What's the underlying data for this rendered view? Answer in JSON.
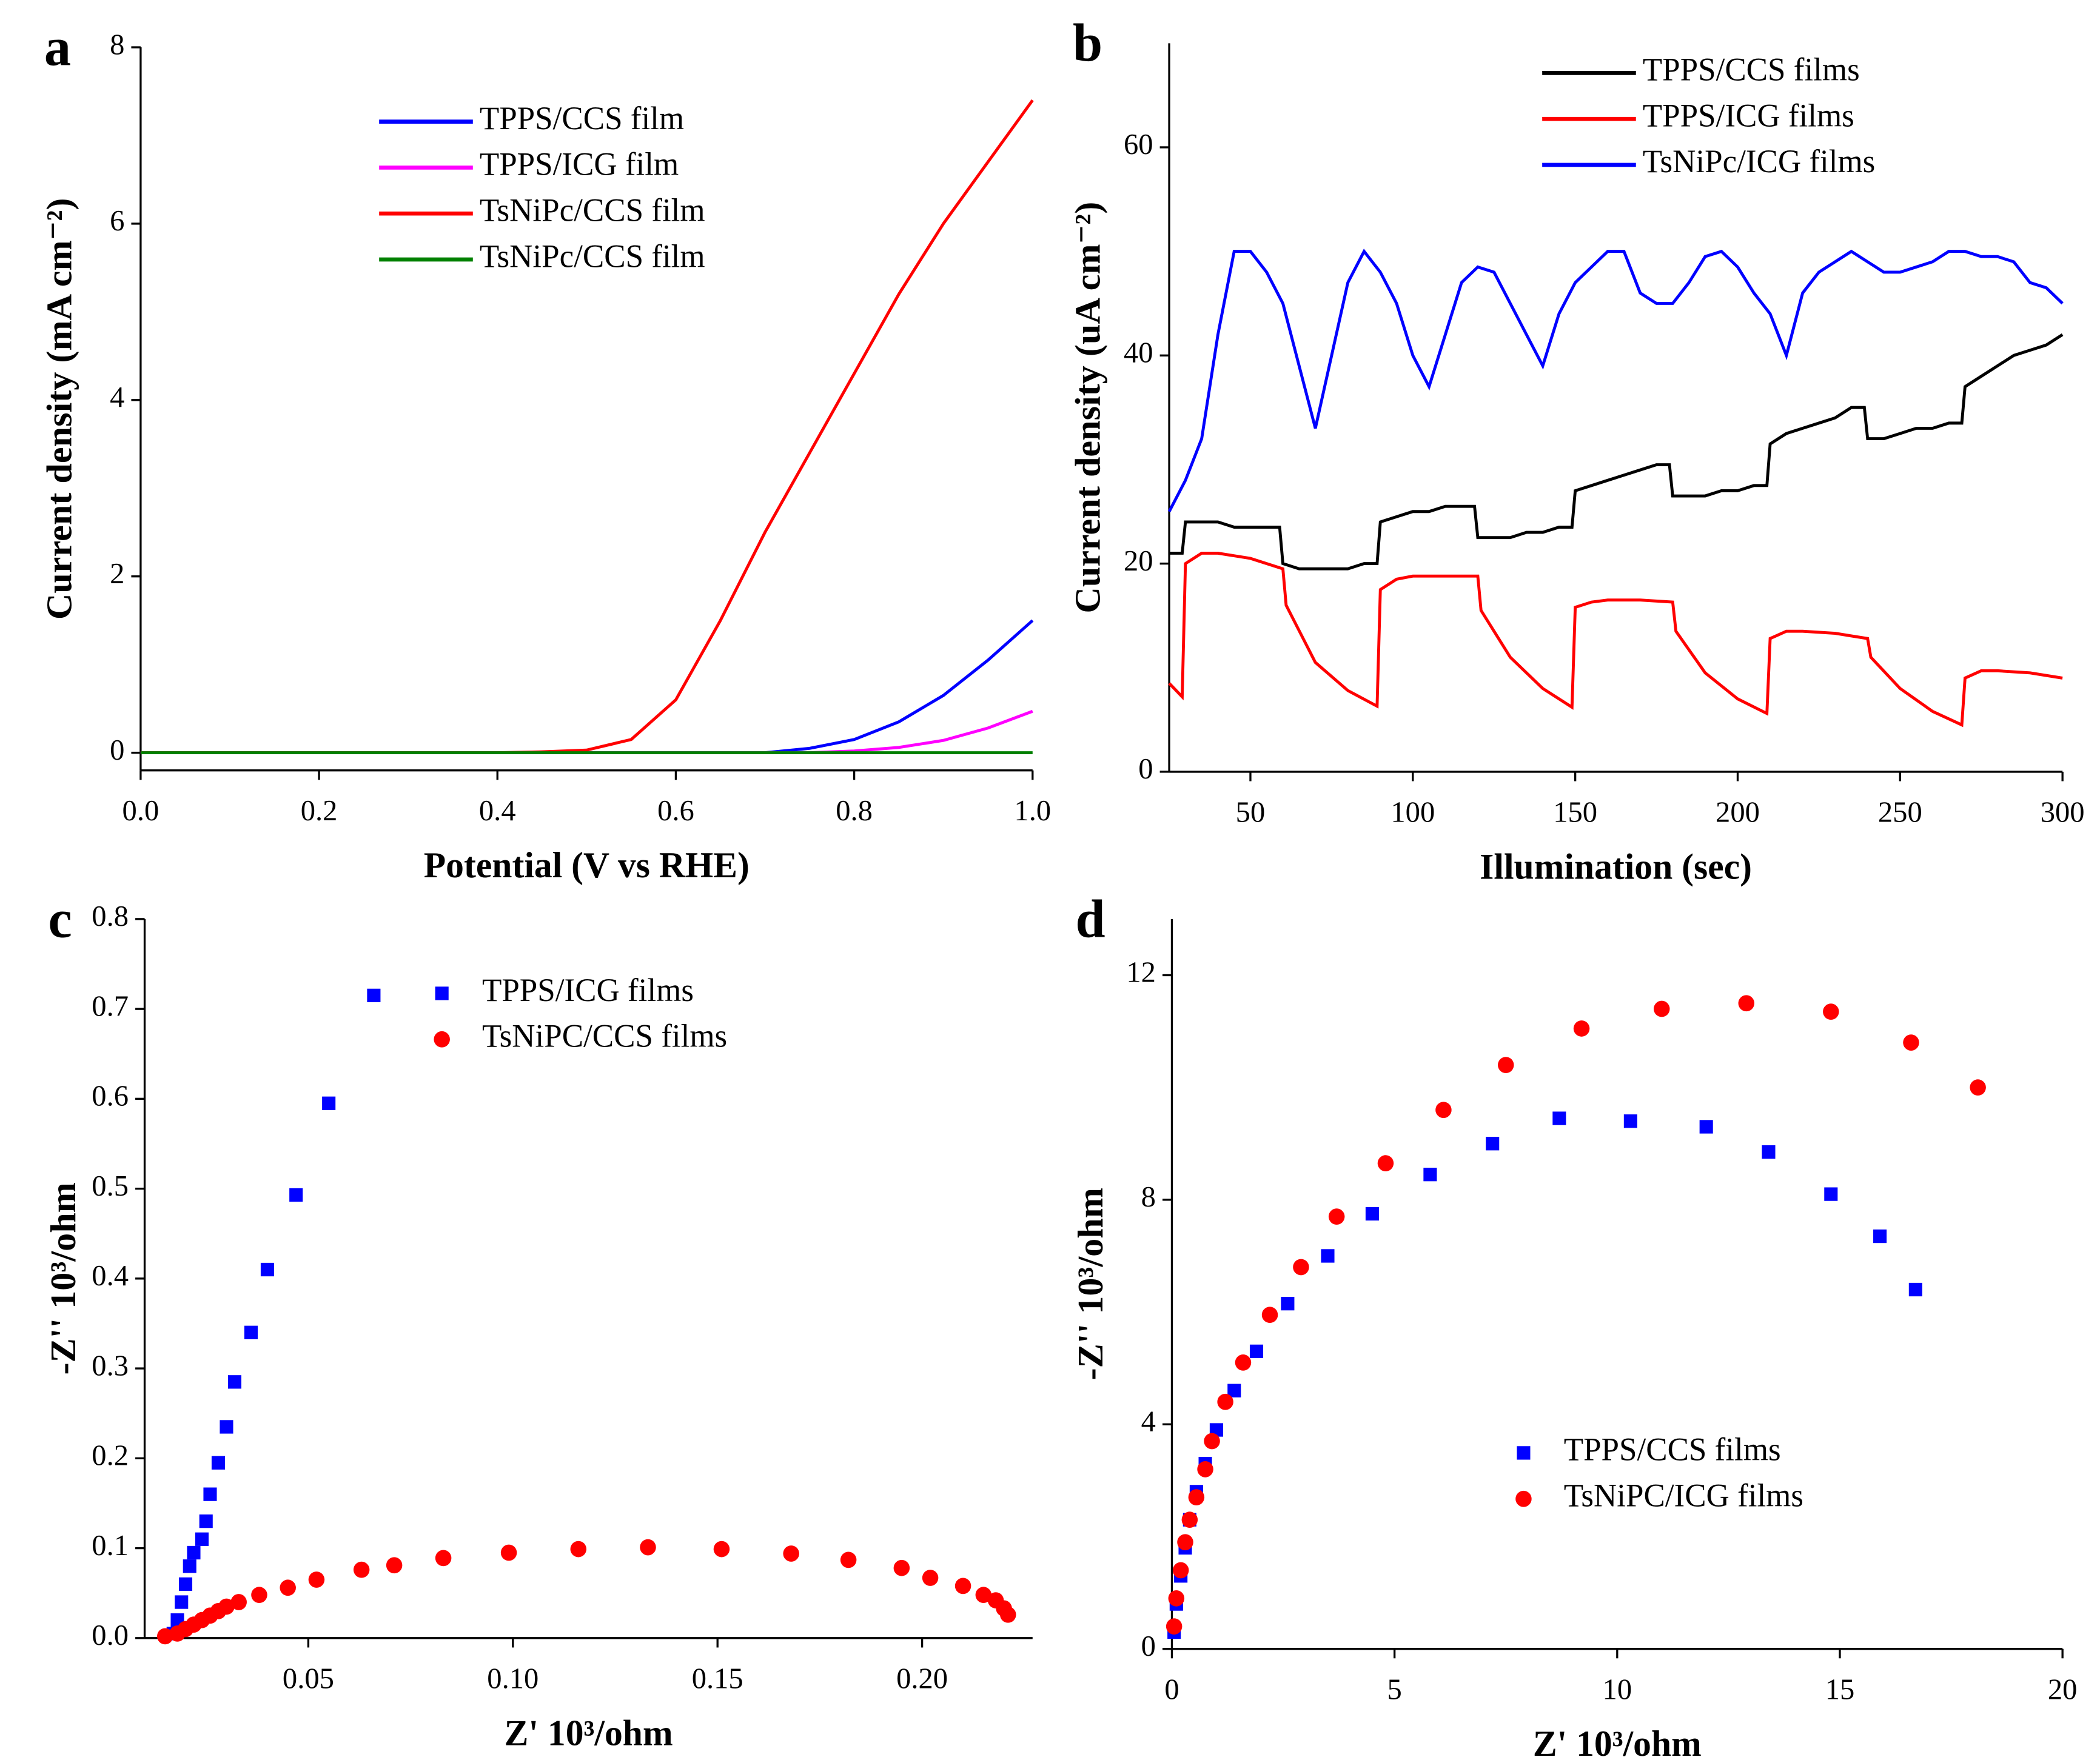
{
  "chart_data": [
    {
      "type": "line",
      "label": "a",
      "x_label": "Potential (V vs RHE)",
      "y_label": "Current density (mA cm⁻²)",
      "x": [
        0,
        0.05,
        0.1,
        0.15,
        0.2,
        0.25,
        0.3,
        0.35,
        0.4,
        0.45,
        0.5,
        0.55,
        0.6,
        0.65,
        0.7,
        0.75,
        0.8,
        0.85,
        0.9,
        0.95,
        1.0
      ],
      "series": [
        {
          "name": "TPPS/CCS film",
          "color": "#0000ff",
          "values": [
            0,
            0,
            0,
            0,
            0,
            0,
            0,
            0,
            0,
            0,
            0,
            0,
            0,
            0,
            0,
            0.05,
            0.15,
            0.35,
            0.65,
            1.05,
            1.5
          ]
        },
        {
          "name": "TPPS/ICG film",
          "color": "#ff00ff",
          "values": [
            0,
            0,
            0,
            0,
            0,
            0,
            0,
            0,
            0,
            0,
            0,
            0,
            0,
            0,
            0,
            0,
            0.02,
            0.06,
            0.14,
            0.28,
            0.47
          ]
        },
        {
          "name": "TsNiPc/CCS film",
          "color": "#ff0000",
          "values": [
            0,
            0,
            0,
            0,
            0,
            0,
            0,
            0,
            0,
            0.01,
            0.03,
            0.15,
            0.6,
            1.5,
            2.5,
            3.4,
            4.3,
            5.2,
            6.0,
            6.7,
            7.4
          ]
        },
        {
          "name": "TsNiPc/CCS film",
          "color": "#008000",
          "values": [
            0,
            0,
            0,
            0,
            0,
            0,
            0,
            0,
            0,
            0,
            0,
            0,
            0,
            0,
            0,
            0,
            0,
            0,
            0,
            0,
            0
          ]
        }
      ],
      "xlim": [
        0,
        1.0
      ],
      "ylim": [
        -0.2,
        8
      ],
      "xticks": [
        {
          "value": 0,
          "label": "0.0"
        },
        {
          "value": 0.2,
          "label": "0.2"
        },
        {
          "value": 0.4,
          "label": "0.4"
        },
        {
          "value": 0.6,
          "label": "0.6"
        },
        {
          "value": 0.8,
          "label": "0.8"
        },
        {
          "value": 1.0,
          "label": "1.0"
        }
      ],
      "yticks": [
        0,
        2,
        4,
        6,
        8
      ],
      "legend": "upper center"
    },
    {
      "type": "line",
      "label": "b",
      "x_label": "Illumination (sec)",
      "y_label": "Current density (uA cm⁻²)",
      "series": [
        {
          "name": "TPPS/CCS films",
          "color": "#000000",
          "x": [
            25,
            29,
            30,
            35,
            40,
            45,
            50,
            55,
            59,
            60,
            65,
            70,
            75,
            80,
            85,
            89,
            90,
            95,
            100,
            105,
            110,
            115,
            119,
            120,
            125,
            130,
            135,
            140,
            145,
            149,
            150,
            155,
            160,
            165,
            170,
            175,
            179,
            180,
            185,
            190,
            195,
            200,
            205,
            209,
            210,
            215,
            220,
            225,
            230,
            235,
            239,
            240,
            245,
            250,
            255,
            260,
            265,
            269,
            270,
            275,
            280,
            285,
            290,
            295,
            300
          ],
          "values": [
            21,
            21,
            24,
            24,
            24,
            23.5,
            23.5,
            23.5,
            23.5,
            20,
            19.5,
            19.5,
            19.5,
            19.5,
            20,
            20,
            24,
            24.5,
            25,
            25,
            25.5,
            25.5,
            25.5,
            22.5,
            22.5,
            22.5,
            23,
            23,
            23.5,
            23.5,
            27,
            27.5,
            28,
            28.5,
            29,
            29.5,
            29.5,
            26.5,
            26.5,
            26.5,
            27,
            27,
            27.5,
            27.5,
            31.5,
            32.5,
            33,
            33.5,
            34,
            35,
            35,
            32,
            32,
            32.5,
            33,
            33,
            33.5,
            33.5,
            37,
            38,
            39,
            40,
            40.5,
            41,
            42
          ]
        },
        {
          "name": "TPPS/ICG films",
          "color": "#ff0000",
          "x": [
            25,
            29,
            30,
            35,
            40,
            50,
            60,
            61,
            70,
            80,
            89,
            90,
            95,
            100,
            110,
            120,
            121,
            130,
            140,
            149,
            150,
            155,
            160,
            170,
            180,
            181,
            190,
            200,
            209,
            210,
            215,
            220,
            230,
            240,
            241,
            250,
            260,
            269,
            270,
            275,
            280,
            290,
            300
          ],
          "values": [
            8.5,
            7.2,
            20,
            21,
            21,
            20.5,
            19.5,
            16,
            10.5,
            7.8,
            6.3,
            17.5,
            18.5,
            18.8,
            18.8,
            18.8,
            15.5,
            11,
            8,
            6.2,
            15.8,
            16.3,
            16.5,
            16.5,
            16.3,
            13.5,
            9.5,
            7,
            5.6,
            12.8,
            13.5,
            13.5,
            13.3,
            12.8,
            11,
            8,
            5.8,
            4.5,
            9,
            9.7,
            9.7,
            9.5,
            9
          ]
        },
        {
          "name": "TsNiPc/ICG films",
          "color": "#0000ff",
          "x": [
            25,
            30,
            35,
            40,
            45,
            50,
            55,
            60,
            65,
            70,
            75,
            80,
            85,
            90,
            95,
            100,
            105,
            110,
            115,
            120,
            125,
            130,
            135,
            140,
            145,
            150,
            155,
            160,
            165,
            170,
            175,
            180,
            185,
            190,
            195,
            200,
            205,
            210,
            215,
            220,
            225,
            230,
            235,
            240,
            245,
            250,
            255,
            260,
            265,
            270,
            275,
            280,
            285,
            290,
            295,
            300
          ],
          "values": [
            25,
            28,
            32,
            42,
            50,
            50,
            48,
            45,
            39,
            33,
            40,
            47,
            50,
            48,
            45,
            40,
            37,
            42,
            47,
            48.5,
            48,
            45,
            42,
            39,
            44,
            47,
            48.5,
            50,
            50,
            46,
            45,
            45,
            47,
            49.5,
            50,
            48.5,
            46,
            44,
            40,
            46,
            48,
            49,
            50,
            49,
            48,
            48,
            48.5,
            49,
            50,
            50,
            49.5,
            49.5,
            49,
            47,
            46.5,
            45
          ]
        }
      ],
      "xlim": [
        25,
        300
      ],
      "ylim": [
        0,
        70
      ],
      "xticks": [
        50,
        100,
        150,
        200,
        250,
        300
      ],
      "yticks": [
        0,
        20,
        40,
        60
      ],
      "legend": "upper right"
    },
    {
      "type": "scatter",
      "label": "c",
      "x_label": "Z' 10³/ohm",
      "y_label": "-Z'' 10³/ohm",
      "series": [
        {
          "name": "TPPS/ICG films",
          "color": "#0000ff",
          "marker": "square",
          "x": [
            0.017,
            0.018,
            0.019,
            0.02,
            0.021,
            0.022,
            0.024,
            0.025,
            0.026,
            0.028,
            0.03,
            0.032,
            0.036,
            0.04,
            0.047,
            0.055,
            0.066
          ],
          "values": [
            0.005,
            0.02,
            0.04,
            0.06,
            0.08,
            0.095,
            0.11,
            0.13,
            0.16,
            0.195,
            0.235,
            0.285,
            0.34,
            0.41,
            0.493,
            0.595,
            0.715
          ]
        },
        {
          "name": "TsNiPC/CCS films",
          "color": "#ff0000",
          "marker": "circle",
          "x": [
            0.015,
            0.018,
            0.02,
            0.022,
            0.024,
            0.026,
            0.028,
            0.03,
            0.033,
            0.038,
            0.045,
            0.052,
            0.063,
            0.071,
            0.083,
            0.099,
            0.116,
            0.133,
            0.151,
            0.168,
            0.182,
            0.195,
            0.202,
            0.21,
            0.215,
            0.218,
            0.22,
            0.221
          ],
          "values": [
            0.002,
            0.005,
            0.01,
            0.015,
            0.02,
            0.025,
            0.03,
            0.035,
            0.04,
            0.048,
            0.056,
            0.065,
            0.076,
            0.081,
            0.089,
            0.095,
            0.099,
            0.101,
            0.099,
            0.094,
            0.087,
            0.078,
            0.067,
            0.058,
            0.048,
            0.042,
            0.033,
            0.026
          ]
        }
      ],
      "xlim": [
        0.01,
        0.227
      ],
      "ylim": [
        0,
        0.8
      ],
      "xticks": [
        0.05,
        {
          "value": 0.1,
          "label": "0.10"
        },
        0.15,
        {
          "value": 0.2,
          "label": "0.20"
        }
      ],
      "yticks": [
        {
          "value": 0,
          "label": "0.0"
        },
        0.1,
        0.2,
        0.3,
        0.4,
        0.5,
        0.6,
        0.7,
        0.8
      ],
      "legend": "upper center"
    },
    {
      "type": "scatter",
      "label": "d",
      "x_label": "Z' 10³/ohm",
      "y_label": "-Z'' 10³/ohm",
      "series": [
        {
          "name": "TPPS/CCS films",
          "color": "#0000ff",
          "marker": "square",
          "x": [
            0.05,
            0.1,
            0.2,
            0.3,
            0.4,
            0.55,
            0.75,
            1.0,
            1.4,
            1.9,
            2.6,
            3.5,
            4.5,
            5.8,
            7.2,
            8.7,
            10.3,
            12.0,
            13.4,
            14.8,
            15.9,
            16.7
          ],
          "values": [
            0.3,
            0.8,
            1.3,
            1.8,
            2.3,
            2.8,
            3.3,
            3.9,
            4.6,
            5.3,
            6.15,
            7.0,
            7.75,
            8.45,
            9.0,
            9.45,
            9.4,
            9.3,
            8.85,
            8.1,
            7.35,
            6.4
          ]
        },
        {
          "name": "TsNiPC/ICG films",
          "color": "#ff0000",
          "marker": "circle",
          "x": [
            0.05,
            0.1,
            0.2,
            0.3,
            0.4,
            0.55,
            0.75,
            0.9,
            1.2,
            1.6,
            2.2,
            2.9,
            3.7,
            4.8,
            6.1,
            7.5,
            9.2,
            11.0,
            12.9,
            14.8,
            16.6,
            18.1
          ],
          "values": [
            0.4,
            0.9,
            1.4,
            1.9,
            2.3,
            2.7,
            3.2,
            3.7,
            4.4,
            5.1,
            5.95,
            6.8,
            7.7,
            8.65,
            9.6,
            10.4,
            11.05,
            11.4,
            11.5,
            11.35,
            10.8,
            10.0
          ]
        }
      ],
      "xlim": [
        0,
        20
      ],
      "ylim": [
        0,
        13
      ],
      "xticks": [
        0,
        5,
        10,
        15,
        20
      ],
      "yticks": [
        0,
        4,
        8,
        12
      ],
      "legend": "lower center"
    }
  ]
}
